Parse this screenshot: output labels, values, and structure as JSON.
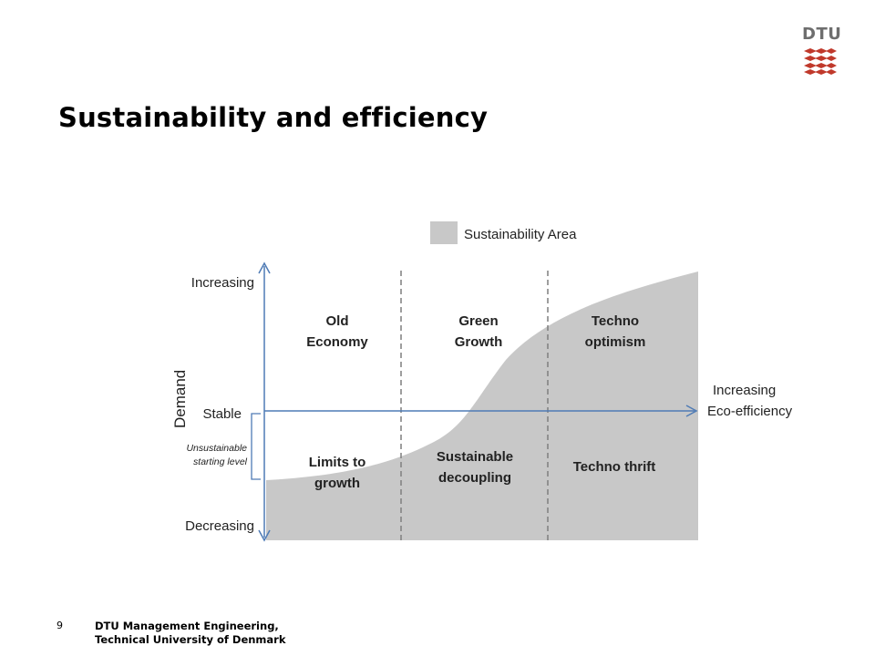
{
  "slide": {
    "title": "Sustainability and efficiency",
    "page_number": "9",
    "footer_line1": "DTU Management Engineering,",
    "footer_line2": "Technical University of Denmark"
  },
  "logo": {
    "text": "DTU",
    "color": "#c0392b"
  },
  "diagram": {
    "legend_label": "Sustainability Area",
    "y_axis_title": "Demand",
    "y_levels": {
      "top": "Increasing",
      "middle": "Stable",
      "bottom": "Decreasing"
    },
    "bracket_label_line1": "Unsustainable",
    "bracket_label_line2": "starting level",
    "x_axis_line1": "Increasing",
    "x_axis_line2": "Eco-efficiency",
    "quadrants": {
      "old_economy": [
        "Old",
        "Economy"
      ],
      "green_growth": [
        "Green",
        "Growth"
      ],
      "techno_optimism": [
        "Techno",
        "optimism"
      ],
      "limits_to_growth": [
        "Limits to",
        "growth"
      ],
      "sustainable_decoupling": [
        "Sustainable",
        "decoupling"
      ],
      "techno_thrift": [
        "Techno thrift"
      ]
    },
    "colors": {
      "area_fill": "#c8c8c8",
      "axis": "#4f7bb5",
      "divider": "#7f7f7f"
    }
  }
}
